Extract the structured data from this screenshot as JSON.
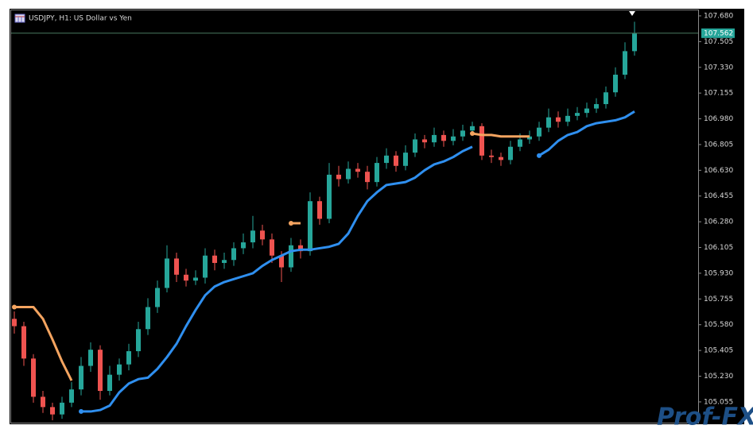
{
  "chart_data": {
    "type": "candlestick",
    "title": "USDJPY, H1:  US Dollar vs Yen",
    "watermark": "Prof-FX",
    "up_color": "#26a69a",
    "down_color": "#ef5350",
    "ylim": [
      104.914,
      107.723
    ],
    "yticks": [
      {
        "value": 107.68,
        "label": "107.680"
      },
      107.505,
      {
        "value": 107.33,
        "label": "107.330"
      },
      107.155,
      {
        "value": 106.98,
        "label": "106.980"
      },
      106.805,
      {
        "value": 106.63,
        "label": "106.630"
      },
      106.455,
      {
        "value": 106.28,
        "label": "106.280"
      },
      106.105,
      {
        "value": 105.93,
        "label": "105.930"
      },
      105.755,
      {
        "value": 105.58,
        "label": "105.580"
      },
      105.405,
      {
        "value": 105.23,
        "label": "105.230"
      },
      105.055
    ],
    "current_price": 107.562,
    "open": [
      105.62,
      105.57,
      105.35,
      105.09,
      105.02,
      104.97,
      105.05,
      105.14,
      105.3,
      105.41,
      105.13,
      105.24,
      105.31,
      105.4,
      105.55,
      105.7,
      105.83,
      106.03,
      105.92,
      105.88,
      105.9,
      106.05,
      106.0,
      106.02,
      106.1,
      106.14,
      106.22,
      106.16,
      106.05,
      105.97,
      106.12,
      106.08,
      106.42,
      106.3,
      106.6,
      106.57,
      106.64,
      106.62,
      106.55,
      106.68,
      106.73,
      106.66,
      106.75,
      106.84,
      106.82,
      106.87,
      106.83,
      106.86,
      106.9,
      106.93,
      106.73,
      106.72,
      106.7,
      106.79,
      106.84,
      106.86,
      106.92,
      106.99,
      106.96,
      107.0,
      107.02,
      107.05,
      107.08,
      107.16,
      107.28,
      107.44
    ],
    "high": [
      105.67,
      105.6,
      105.38,
      105.13,
      105.05,
      105.09,
      105.19,
      105.36,
      105.46,
      105.44,
      105.3,
      105.35,
      105.45,
      105.6,
      105.76,
      105.88,
      106.12,
      106.07,
      105.96,
      105.95,
      106.1,
      106.09,
      106.07,
      106.14,
      106.2,
      106.32,
      106.26,
      106.2,
      106.08,
      106.17,
      106.16,
      106.48,
      106.45,
      106.68,
      106.66,
      106.69,
      106.68,
      106.66,
      106.72,
      106.78,
      106.76,
      106.8,
      106.88,
      106.87,
      106.92,
      106.9,
      106.91,
      106.94,
      106.96,
      106.95,
      106.77,
      106.75,
      106.83,
      106.88,
      106.9,
      106.96,
      107.05,
      107.03,
      107.05,
      107.06,
      107.09,
      107.12,
      107.2,
      107.33,
      107.5,
      107.64
    ],
    "low": [
      105.52,
      105.3,
      105.05,
      104.98,
      104.93,
      104.94,
      105.02,
      105.1,
      105.26,
      105.07,
      105.1,
      105.2,
      105.27,
      105.36,
      105.51,
      105.66,
      105.8,
      105.87,
      105.84,
      105.85,
      105.86,
      105.95,
      105.96,
      105.98,
      106.06,
      106.1,
      106.12,
      106.0,
      105.87,
      105.94,
      106.03,
      106.05,
      106.26,
      106.27,
      106.52,
      106.54,
      106.58,
      106.5,
      106.52,
      106.64,
      106.62,
      106.63,
      106.72,
      106.78,
      106.79,
      106.79,
      106.8,
      106.83,
      106.87,
      106.7,
      106.68,
      106.66,
      106.67,
      106.76,
      106.81,
      106.83,
      106.89,
      106.92,
      106.93,
      106.97,
      106.99,
      107.02,
      107.05,
      107.13,
      107.25,
      107.41
    ],
    "close": [
      105.57,
      105.35,
      105.09,
      105.02,
      104.97,
      105.05,
      105.14,
      105.3,
      105.41,
      105.13,
      105.24,
      105.31,
      105.4,
      105.55,
      105.7,
      105.83,
      106.03,
      105.92,
      105.88,
      105.9,
      106.05,
      106.0,
      106.02,
      106.1,
      106.14,
      106.22,
      106.16,
      106.05,
      105.97,
      106.12,
      106.08,
      106.42,
      106.3,
      106.6,
      106.57,
      106.64,
      106.62,
      106.55,
      106.68,
      106.73,
      106.66,
      106.75,
      106.84,
      106.82,
      106.87,
      106.83,
      106.86,
      106.9,
      106.93,
      106.73,
      106.72,
      106.7,
      106.79,
      106.84,
      106.86,
      106.92,
      106.99,
      106.96,
      107.0,
      107.02,
      107.05,
      107.08,
      107.16,
      107.28,
      107.44,
      107.56
    ],
    "lines": [
      {
        "color": "#2f8fef",
        "values": [
          null,
          null,
          null,
          null,
          null,
          null,
          null,
          104.99,
          104.99,
          105.0,
          105.03,
          105.12,
          105.18,
          105.21,
          105.22,
          105.28,
          105.36,
          105.45,
          105.57,
          105.68,
          105.78,
          105.84,
          105.87,
          105.89,
          105.91,
          105.93,
          105.98,
          106.02,
          106.05,
          106.08,
          106.09,
          106.09,
          106.1,
          106.11,
          106.13,
          106.2,
          106.32,
          106.42,
          106.48,
          106.53,
          106.54,
          106.55,
          106.58,
          106.63,
          106.67,
          106.69,
          106.72,
          106.76,
          106.79,
          null,
          null,
          null,
          null,
          null,
          null,
          106.73,
          106.77,
          106.83,
          106.87,
          106.89,
          106.93,
          106.95,
          106.96,
          106.97,
          106.99,
          107.03
        ]
      },
      {
        "color": "#f4a460",
        "values": [
          105.7,
          105.7,
          105.7,
          105.62,
          105.48,
          105.33,
          105.2,
          null,
          null,
          null,
          null,
          null,
          null,
          null,
          null,
          null,
          null,
          null,
          null,
          null,
          null,
          null,
          null,
          null,
          null,
          null,
          null,
          null,
          null,
          106.27,
          106.27,
          null,
          null,
          null,
          null,
          null,
          null,
          null,
          null,
          null,
          null,
          null,
          null,
          null,
          null,
          null,
          null,
          null,
          106.88,
          106.87,
          106.87,
          106.86,
          106.86,
          106.86,
          106.86,
          null,
          null,
          null,
          null,
          null,
          null,
          null,
          null,
          null,
          null,
          null
        ]
      }
    ]
  }
}
